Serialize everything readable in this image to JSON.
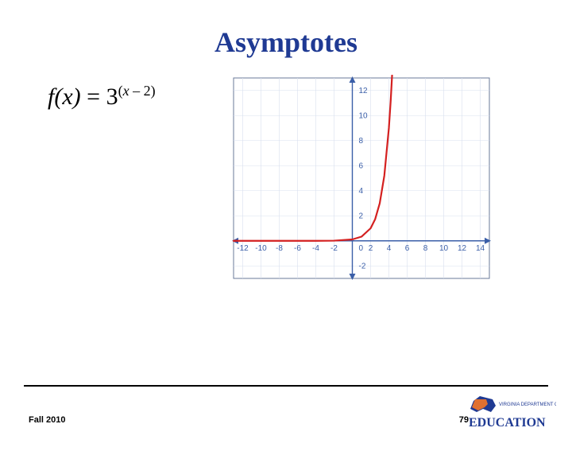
{
  "title": "Asymptotes",
  "equation": {
    "fx": "f(x)",
    "eq": " = ",
    "base": "3",
    "exp_open": "(",
    "exp_var": "x",
    "exp_rest": " – 2)"
  },
  "chart": {
    "type": "line",
    "function": "3^(x-2)",
    "xlim": [
      -13,
      15
    ],
    "ylim": [
      -3,
      13
    ],
    "xticks": [
      -12,
      -10,
      -8,
      -6,
      -4,
      -2,
      0,
      2,
      4,
      6,
      8,
      10,
      12,
      14
    ],
    "yticks": [
      -2,
      0,
      2,
      4,
      6,
      8,
      10,
      12
    ],
    "curve_points": [
      [
        -13,
        0
      ],
      [
        -8,
        1e-05
      ],
      [
        -4,
        0.0014
      ],
      [
        -2,
        0.012
      ],
      [
        0,
        0.111
      ],
      [
        1,
        0.333
      ],
      [
        2,
        1
      ],
      [
        2.5,
        1.732
      ],
      [
        3,
        3
      ],
      [
        3.5,
        5.196
      ],
      [
        4,
        9
      ],
      [
        4.2,
        11.2
      ],
      [
        4.35,
        13.2
      ]
    ],
    "curve_color": "#d42020",
    "curve_width": 2.2,
    "axis_color": "#3b5fa8",
    "grid_color": "#d8e0ef",
    "arrow_color": "#3b5fa8",
    "frame_color": "#6a7a9a",
    "background_color": "#ffffff",
    "tick_label_color": "#3b5fa8",
    "tick_fontsize": 10
  },
  "footer": {
    "left": "Fall 2010",
    "page": "79",
    "logo_top": "VIRGINIA DEPARTMENT OF",
    "logo_main": "EDUCATION"
  }
}
